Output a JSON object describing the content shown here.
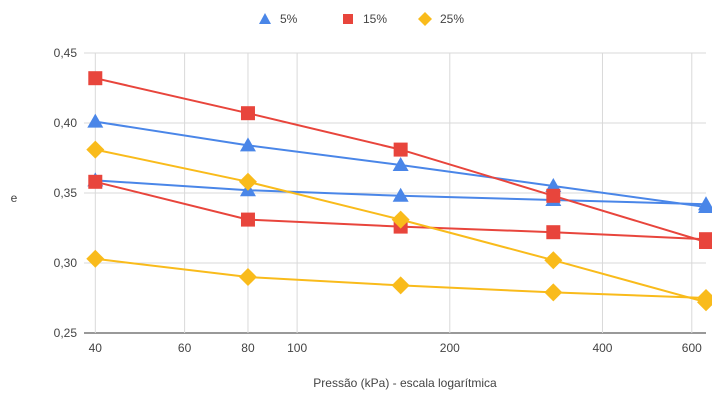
{
  "chart_data": {
    "type": "line",
    "xscale": "log",
    "xlabel": "Pressão (kPa) - escala logarítmica",
    "ylabel": "e",
    "xlim": [
      38,
      640
    ],
    "ylim": [
      0.25,
      0.45
    ],
    "xticks": [
      40,
      60,
      80,
      100,
      200,
      400,
      600
    ],
    "yticks": [
      0.25,
      0.3,
      0.35,
      0.4,
      0.45
    ],
    "ytick_labels": [
      "0,25",
      "0,30",
      "0,35",
      "0,40",
      "0,45"
    ],
    "grid": true,
    "legend_position": "top",
    "x": [
      40,
      80,
      160,
      320,
      640
    ],
    "series": [
      {
        "name": "5%",
        "group": "5%",
        "marker": "triangle",
        "color": "#4a86e8",
        "values": [
          0.401,
          0.384,
          0.37,
          0.355,
          0.34
        ],
        "show_in_legend": true
      },
      {
        "name": "5%",
        "group": "5%",
        "marker": "triangle",
        "color": "#4a86e8",
        "values": [
          0.359,
          0.352,
          0.348,
          0.345,
          0.342
        ],
        "show_in_legend": false
      },
      {
        "name": "15%",
        "group": "15%",
        "marker": "square",
        "color": "#e8453c",
        "values": [
          0.432,
          0.407,
          0.381,
          0.348,
          0.315
        ],
        "show_in_legend": true
      },
      {
        "name": "15%",
        "group": "15%",
        "marker": "square",
        "color": "#e8453c",
        "values": [
          0.358,
          0.331,
          0.326,
          0.322,
          0.317
        ],
        "show_in_legend": false
      },
      {
        "name": "25%",
        "group": "25%",
        "marker": "diamond",
        "color": "#f9bb1b",
        "values": [
          0.381,
          0.358,
          0.331,
          0.302,
          0.272
        ],
        "show_in_legend": true
      },
      {
        "name": "25%",
        "group": "25%",
        "marker": "diamond",
        "color": "#f9bb1b",
        "values": [
          0.303,
          0.29,
          0.284,
          0.279,
          0.275
        ],
        "show_in_legend": false
      }
    ]
  }
}
